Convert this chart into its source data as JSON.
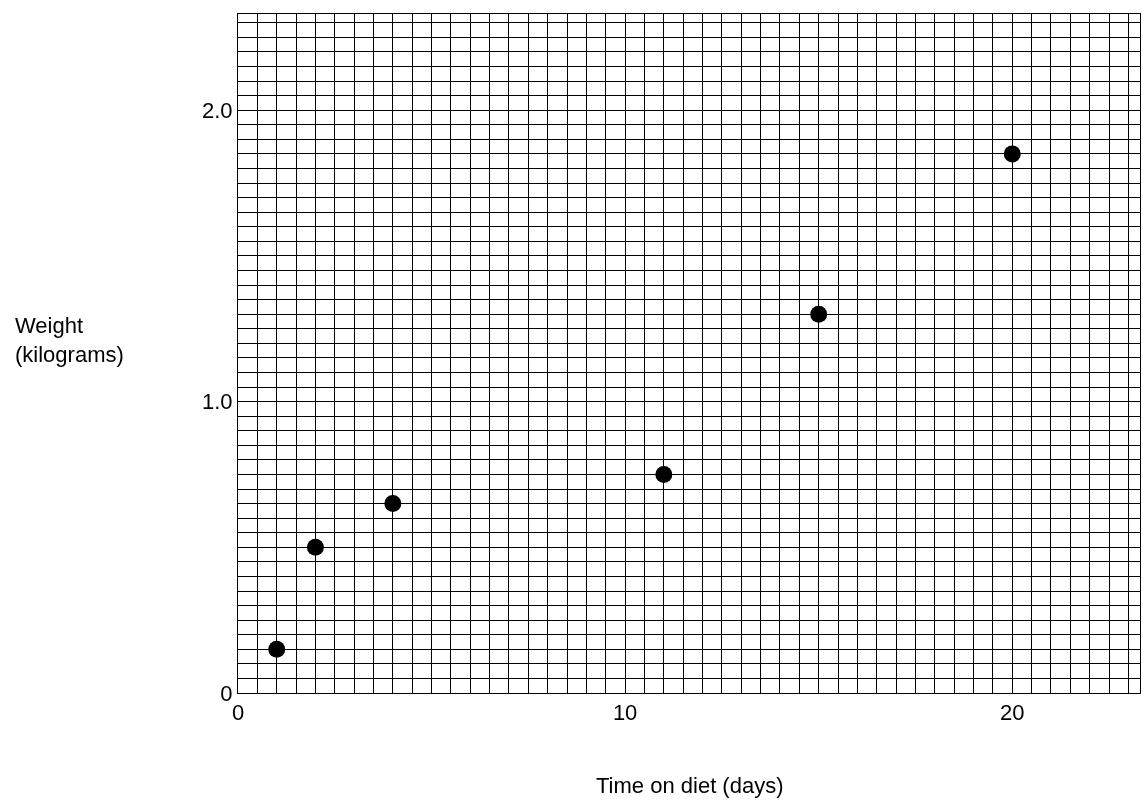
{
  "chart_data": {
    "type": "scatter",
    "xlabel": "Time on diet (days)",
    "ylabel": "Weight\n(kilograms)",
    "x": [
      1,
      2,
      4,
      11,
      15,
      20
    ],
    "values": [
      0.15,
      0.5,
      0.65,
      0.75,
      1.3,
      1.85
    ],
    "color": "#000000",
    "marker": "circle",
    "xlim": [
      0,
      23.3
    ],
    "ylim": [
      0,
      2.33
    ],
    "xticks": [
      0,
      10,
      20
    ],
    "yticks": [
      0,
      {
        "value": 1,
        "label": "1.0"
      },
      {
        "value": 2,
        "label": "2.0"
      }
    ],
    "grid": true
  }
}
